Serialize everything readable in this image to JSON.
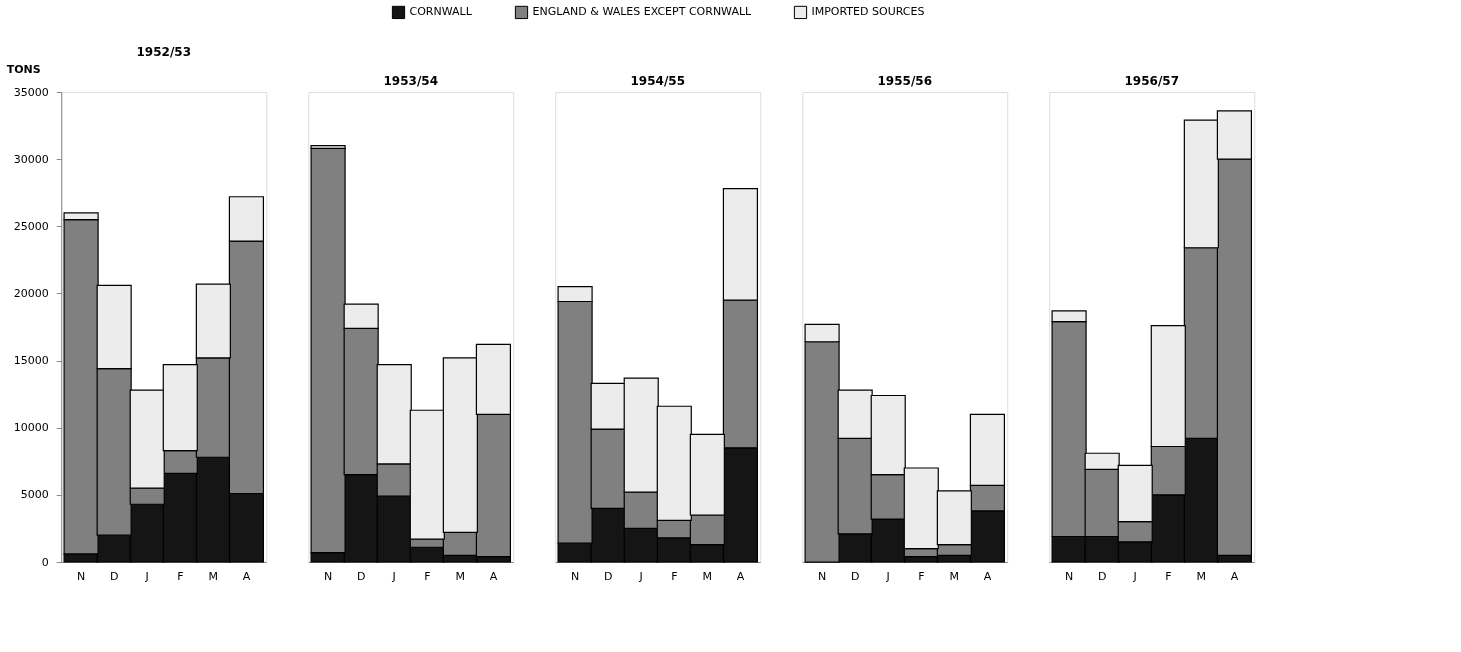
{
  "chart_data": [
    {
      "type": "bar",
      "title": "1952/53",
      "ylabel": "TONS",
      "stacked": true,
      "legend": "top",
      "grid": false,
      "ylim": [
        0,
        35000
      ],
      "yticks": [
        0,
        5000,
        10000,
        15000,
        20000,
        25000,
        30000,
        35000
      ],
      "categories": [
        "N",
        "D",
        "J",
        "F",
        "M",
        "A"
      ],
      "series": [
        {
          "name": "CORNWALL",
          "color": "#151515",
          "values": [
            600,
            2000,
            4300,
            6600,
            7800,
            5100
          ]
        },
        {
          "name": "ENGLAND & WALES EXCEPT CORNWALL",
          "color": "#808080",
          "values": [
            24900,
            12400,
            1200,
            1700,
            7400,
            18800
          ]
        },
        {
          "name": "IMPORTED SOURCES",
          "color": "#ececec",
          "values": [
            500,
            6200,
            7300,
            6400,
            5500,
            3300
          ]
        }
      ]
    },
    {
      "type": "bar",
      "title": "1953/54",
      "stacked": true,
      "grid": false,
      "tick_labels": "x",
      "ylim": [
        0,
        35000
      ],
      "categories": [
        "N",
        "D",
        "J",
        "F",
        "M",
        "A"
      ],
      "series": [
        {
          "color": "#151515",
          "values": [
            700,
            6500,
            4900,
            1100,
            500,
            400
          ]
        },
        {
          "color": "#808080",
          "values": [
            30100,
            10900,
            2400,
            600,
            1700,
            10600
          ]
        },
        {
          "color": "#ececec",
          "values": [
            200,
            1800,
            7400,
            9600,
            13000,
            5200
          ]
        }
      ]
    },
    {
      "type": "bar",
      "title": "1954/55",
      "stacked": true,
      "grid": false,
      "tick_labels": "x",
      "ylim": [
        0,
        35000
      ],
      "categories": [
        "N",
        "D",
        "J",
        "F",
        "M",
        "A"
      ],
      "series": [
        {
          "color": "#151515",
          "values": [
            1400,
            4000,
            2500,
            1800,
            1300,
            8500
          ]
        },
        {
          "color": "#808080",
          "values": [
            18000,
            5900,
            2700,
            1300,
            2200,
            11000
          ]
        },
        {
          "color": "#ececec",
          "values": [
            1100,
            3400,
            8500,
            8500,
            6000,
            8300
          ]
        }
      ]
    },
    {
      "type": "bar",
      "title": "1955/56",
      "stacked": true,
      "grid": false,
      "tick_labels": "x",
      "ylim": [
        0,
        35000
      ],
      "categories": [
        "N",
        "D",
        "J",
        "F",
        "M",
        "A"
      ],
      "series": [
        {
          "color": "#151515",
          "values": [
            0,
            2100,
            3200,
            400,
            500,
            3800
          ]
        },
        {
          "color": "#808080",
          "values": [
            16400,
            7100,
            3300,
            600,
            800,
            1900
          ]
        },
        {
          "color": "#ececec",
          "values": [
            1300,
            3600,
            5900,
            6000,
            4000,
            5300
          ]
        }
      ]
    },
    {
      "type": "bar",
      "title": "1956/57",
      "stacked": true,
      "grid": false,
      "tick_labels": "x",
      "ylim": [
        0,
        35000
      ],
      "categories": [
        "N",
        "D",
        "J",
        "F",
        "M",
        "A"
      ],
      "series": [
        {
          "color": "#151515",
          "values": [
            1900,
            1900,
            1500,
            5000,
            9200,
            500
          ]
        },
        {
          "color": "#808080",
          "values": [
            16000,
            5000,
            1500,
            3600,
            14200,
            29500
          ]
        },
        {
          "color": "#ececec",
          "values": [
            800,
            1200,
            4200,
            9000,
            9500,
            3600
          ]
        }
      ]
    }
  ]
}
